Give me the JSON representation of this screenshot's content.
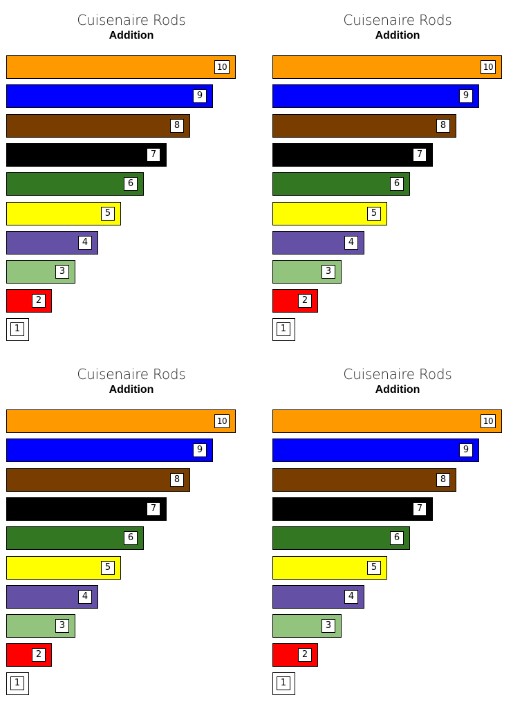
{
  "panels": [
    {
      "title": "Cuisenaire Rods",
      "subtitle": "Addition"
    },
    {
      "title": "Cuisenaire Rods",
      "subtitle": "Addition"
    },
    {
      "title": "Cuisenaire Rods",
      "subtitle": "Addition"
    },
    {
      "title": "Cuisenaire Rods",
      "subtitle": "Addition"
    }
  ],
  "rods": [
    {
      "value": 10,
      "label": "10",
      "color": "#ff9900"
    },
    {
      "value": 9,
      "label": "9",
      "color": "#0000ff"
    },
    {
      "value": 8,
      "label": "8",
      "color": "#7a3d00"
    },
    {
      "value": 7,
      "label": "7",
      "color": "#000000"
    },
    {
      "value": 6,
      "label": "6",
      "color": "#337722"
    },
    {
      "value": 5,
      "label": "5",
      "color": "#ffff00"
    },
    {
      "value": 4,
      "label": "4",
      "color": "#6450a5"
    },
    {
      "value": 3,
      "label": "3",
      "color": "#93c47d"
    },
    {
      "value": 2,
      "label": "2",
      "color": "#ff0000"
    },
    {
      "value": 1,
      "label": "1",
      "color": "#ffffff"
    }
  ]
}
